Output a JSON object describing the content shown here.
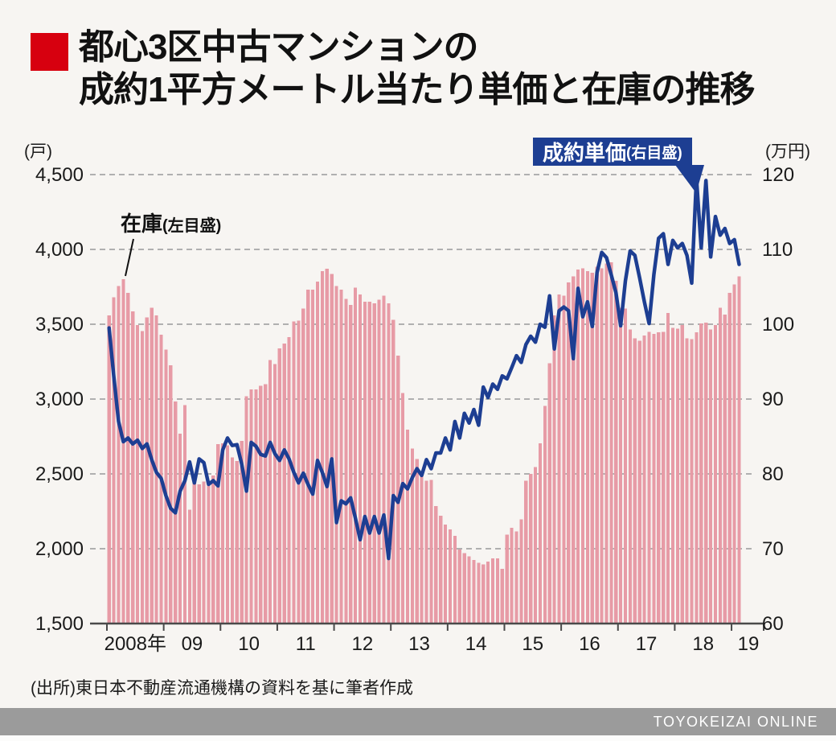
{
  "title": {
    "line1": "都心3区中古マンションの",
    "line2": "成約1平方メートル当たり単価と在庫の推移"
  },
  "units": {
    "left": "(戸)",
    "right": "(万円)"
  },
  "annotations": {
    "inventory": {
      "main": "在庫",
      "sub": "(左目盛)"
    },
    "price": {
      "main": "成約単価",
      "sub": "(右目盛)"
    }
  },
  "source": "(出所)東日本不動産流通機構の資料を基に筆者作成",
  "footer": {
    "brand": "TOYOKEIZAI ONLINE"
  },
  "colors": {
    "accent_red": "#d7000f",
    "bar": "#e79ba6",
    "line": "#1d3e92",
    "callout_bg": "#1d3e92",
    "grid": "#999999",
    "axis": "#4a4a4a",
    "page_bg": "#f7f5f2",
    "footer_bg": "#9b9b9b"
  },
  "chart_data": {
    "type": "bar+line",
    "title": "都心3区中古マンションの成約1平方メートル当たり単価と在庫の推移",
    "x_freq": "monthly",
    "x_start": "2008-01",
    "x_end": "2019-02",
    "grid": "horizontal-dashed",
    "legend_position": "inline-annotations",
    "x_axis": {
      "labels": [
        "2008年",
        "09",
        "10",
        "11",
        "12",
        "13",
        "14",
        "15",
        "16",
        "17",
        "18",
        "19"
      ]
    },
    "left_axis": {
      "unit": "(戸)",
      "label_for": "在庫",
      "min": 1500,
      "max": 4500,
      "tick_values": [
        4500,
        4000,
        3500,
        3000,
        2500,
        2000,
        1500
      ],
      "tick_labels": [
        "4,500",
        "4,000",
        "3,500",
        "3,000",
        "2,500",
        "2,000",
        "1,500"
      ]
    },
    "right_axis": {
      "unit": "(万円)",
      "label_for": "成約単価",
      "min": 60,
      "max": 120,
      "tick_values": [
        120,
        110,
        100,
        90,
        80,
        70,
        60
      ],
      "tick_labels": [
        "120",
        "110",
        "100",
        "90",
        "80",
        "70",
        "60"
      ]
    },
    "series": [
      {
        "name": "在庫(左目盛)",
        "type": "bar",
        "axis": "left",
        "color": "#e79ba6",
        "values": [
          3560,
          3680,
          3755,
          3800,
          3710,
          3585,
          3495,
          3455,
          3545,
          3610,
          3560,
          3430,
          3330,
          3225,
          2985,
          2770,
          2960,
          2260,
          2450,
          2430,
          2450,
          2440,
          2490,
          2700,
          2705,
          2690,
          2610,
          2585,
          2720,
          3020,
          3065,
          3065,
          3090,
          3100,
          3260,
          3235,
          3340,
          3370,
          3415,
          3520,
          3525,
          3605,
          3730,
          3730,
          3785,
          3855,
          3870,
          3835,
          3755,
          3730,
          3670,
          3630,
          3745,
          3700,
          3650,
          3650,
          3640,
          3665,
          3690,
          3640,
          3530,
          3290,
          3040,
          2795,
          2670,
          2600,
          2490,
          2455,
          2460,
          2285,
          2220,
          2160,
          2130,
          2085,
          1995,
          1970,
          1950,
          1925,
          1905,
          1895,
          1915,
          1935,
          1935,
          1865,
          2095,
          2140,
          2115,
          2195,
          2455,
          2500,
          2545,
          2705,
          2955,
          3240,
          3560,
          3700,
          3690,
          3780,
          3820,
          3865,
          3875,
          3855,
          3845,
          3885,
          3875,
          3905,
          3915,
          3790,
          3610,
          3605,
          3465,
          3405,
          3390,
          3425,
          3450,
          3435,
          3445,
          3450,
          3575,
          3475,
          3470,
          3495,
          3405,
          3400,
          3445,
          3505,
          3510,
          3465,
          3495,
          3610,
          3565,
          3710,
          3765,
          3820
        ]
      },
      {
        "name": "成約単価(右目盛)",
        "type": "line",
        "axis": "right",
        "color": "#1d3e92",
        "values": [
          99.5,
          93.0,
          87.0,
          84.3,
          84.8,
          84.0,
          84.5,
          83.4,
          84.0,
          81.9,
          80.2,
          79.4,
          77.1,
          75.4,
          74.8,
          77.7,
          79.1,
          81.6,
          78.8,
          82.0,
          81.5,
          78.6,
          79.1,
          78.4,
          83.2,
          84.8,
          83.8,
          83.9,
          81.3,
          77.7,
          84.2,
          83.7,
          82.6,
          82.4,
          84.2,
          82.7,
          81.8,
          83.2,
          82.0,
          80.2,
          78.8,
          80.1,
          78.6,
          77.3,
          81.8,
          80.2,
          78.3,
          82.0,
          73.5,
          76.4,
          76.0,
          76.8,
          74.1,
          71.2,
          74.3,
          72.1,
          74.3,
          72.1,
          74.5,
          68.7,
          77.1,
          76.2,
          78.7,
          78.0,
          79.5,
          80.7,
          79.8,
          81.9,
          80.7,
          82.8,
          82.8,
          84.8,
          83.2,
          87.0,
          84.8,
          88.1,
          86.8,
          88.6,
          86.5,
          91.6,
          90.2,
          92.0,
          91.3,
          93.1,
          92.7,
          94.2,
          95.8,
          94.9,
          97.3,
          98.4,
          97.6,
          100.0,
          99.6,
          103.8,
          96.7,
          101.8,
          102.3,
          101.8,
          95.4,
          104.8,
          101.0,
          103.0,
          99.7,
          106.9,
          109.6,
          108.9,
          106.6,
          104.2,
          99.8,
          105.8,
          109.8,
          109.2,
          106.2,
          103.0,
          100.1,
          106.6,
          111.5,
          112.1,
          108.0,
          111.2,
          110.2,
          110.8,
          109.2,
          105.5,
          119.6,
          110.2,
          119.2,
          109.0,
          114.4,
          111.9,
          112.8,
          110.8,
          111.3,
          108.0
        ]
      }
    ]
  }
}
